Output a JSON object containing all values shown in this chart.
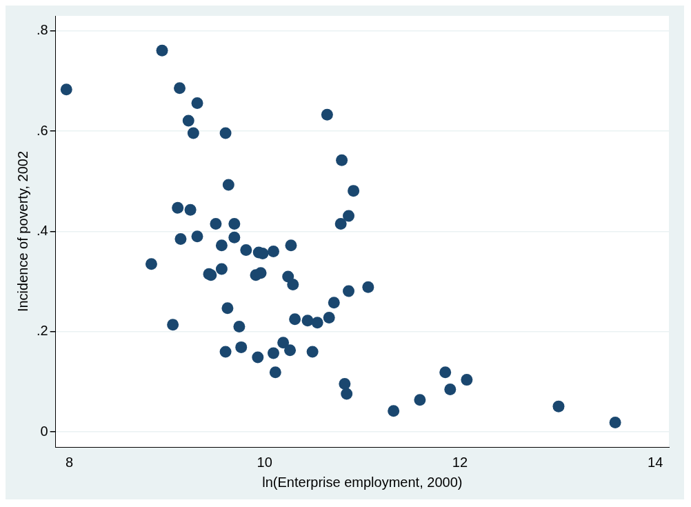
{
  "chart_data": {
    "type": "scatter",
    "xlabel": "ln(Enterprise employment, 2000)",
    "ylabel": "Incidence of poverty, 2002",
    "x": [
      7.97,
      8.95,
      9.13,
      9.31,
      9.22,
      9.27,
      9.6,
      9.63,
      9.11,
      9.24,
      9.5,
      9.69,
      9.31,
      9.14,
      9.69,
      9.56,
      9.81,
      9.94,
      9.98,
      10.09,
      10.27,
      8.84,
      9.56,
      9.43,
      9.45,
      9.91,
      9.96,
      10.24,
      10.29,
      10.64,
      10.79,
      10.91,
      10.86,
      10.78,
      11.06,
      10.86,
      9.62,
      10.71,
      10.66,
      10.31,
      10.44,
      10.54,
      9.06,
      9.74,
      10.19,
      9.76,
      9.6,
      10.26,
      10.09,
      10.49,
      9.93,
      10.11,
      11.85,
      12.07,
      10.82,
      11.9,
      10.84,
      11.59,
      11.32,
      13.01,
      13.59
    ],
    "series": [
      {
        "color": "#1a476f",
        "values": [
          0.683,
          0.761,
          0.686,
          0.656,
          0.621,
          0.596,
          0.596,
          0.493,
          0.447,
          0.443,
          0.415,
          0.415,
          0.39,
          0.385,
          0.388,
          0.372,
          0.363,
          0.358,
          0.356,
          0.36,
          0.372,
          0.335,
          0.325,
          0.315,
          0.313,
          0.313,
          0.317,
          0.31,
          0.294,
          0.633,
          0.542,
          0.481,
          0.431,
          0.415,
          0.289,
          0.281,
          0.247,
          0.258,
          0.228,
          0.225,
          0.222,
          0.218,
          0.214,
          0.21,
          0.178,
          0.169,
          0.16,
          0.163,
          0.157,
          0.16,
          0.149,
          0.119,
          0.119,
          0.104,
          0.096,
          0.085,
          0.076,
          0.064,
          0.042,
          0.051,
          0.019
        ]
      }
    ],
    "xlim": [
      7.86,
      14.14
    ],
    "ylim": [
      -0.03,
      0.83
    ],
    "xticks": [
      8,
      10,
      12,
      14
    ],
    "yticks": [
      0,
      {
        "value": 0.2,
        "label": ".2"
      },
      {
        "value": 0.4,
        "label": ".4"
      },
      {
        "value": 0.6,
        "label": ".6"
      },
      {
        "value": 0.8,
        "label": ".8"
      }
    ],
    "grid": "y",
    "marker": "circle",
    "legend": false
  }
}
